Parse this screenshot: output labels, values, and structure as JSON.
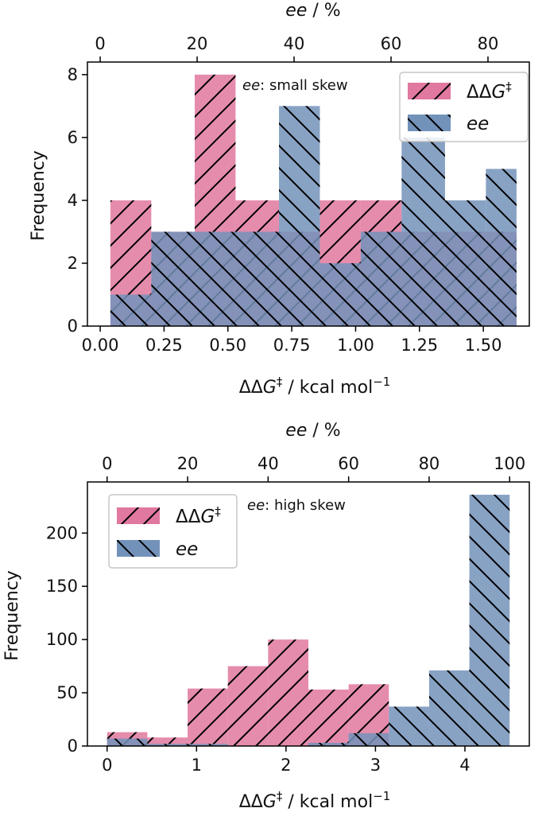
{
  "chart_data": [
    {
      "type": "bar",
      "subtype": "overlaid-histogram",
      "annotation": {
        "italic": "ee",
        "rest": ": small skew"
      },
      "xlabel": {
        "pre": "ΔΔ",
        "italic": "G",
        "sup": "‡",
        "post": " / kcal mol",
        "sup2": "−1"
      },
      "ylabel": "Frequency",
      "top_xlabel": {
        "italic": "ee",
        "post": " / %"
      },
      "xlim": [
        -0.05,
        1.68
      ],
      "ylim": [
        0,
        8.4
      ],
      "xticks": [
        0.0,
        0.25,
        0.5,
        0.75,
        1.0,
        1.25,
        1.5
      ],
      "xtick_labels": [
        "0.00",
        "0.25",
        "0.50",
        "0.75",
        "1.00",
        "1.25",
        "1.50"
      ],
      "yticks": [
        0,
        2,
        4,
        6,
        8
      ],
      "ytick_labels": [
        "0",
        "2",
        "4",
        "6",
        "8"
      ],
      "top_ticks": [
        0,
        20,
        40,
        60,
        80
      ],
      "top_tick_labels": [
        "0",
        "20",
        "40",
        "60",
        "80"
      ],
      "top_xlim": [
        0,
        88
      ],
      "legend": {
        "position": "top-right"
      },
      "series": [
        {
          "legend_label": {
            "pre": "ΔΔ",
            "italic": "G",
            "sup": "‡"
          },
          "color": "#e0789f",
          "hatch": "forward",
          "bin_edges": [
            0.04,
            0.2,
            0.37,
            0.53,
            0.7,
            0.86,
            1.02,
            1.18,
            1.35,
            1.51,
            1.63
          ],
          "values": [
            4,
            3,
            8,
            4,
            3,
            4,
            4,
            3,
            3,
            3
          ]
        },
        {
          "legend_label": {
            "italic": "ee"
          },
          "color": "#7392ba",
          "hatch": "back",
          "bin_edges": [
            0.04,
            0.2,
            0.37,
            0.53,
            0.7,
            0.86,
            1.02,
            1.18,
            1.35,
            1.51,
            1.63
          ],
          "values": [
            1,
            3,
            3,
            3,
            7,
            2,
            3,
            6,
            4,
            5
          ]
        }
      ]
    },
    {
      "type": "bar",
      "subtype": "overlaid-histogram",
      "annotation": {
        "italic": "ee",
        "rest": ": high skew"
      },
      "xlabel": {
        "pre": "ΔΔ",
        "italic": "G",
        "sup": "‡",
        "post": " / kcal mol",
        "sup2": "−1"
      },
      "ylabel": "Frequency",
      "top_xlabel": {
        "italic": "ee",
        "post": " / %"
      },
      "xlim": [
        -0.22,
        4.72
      ],
      "ylim": [
        0,
        248
      ],
      "xticks": [
        0,
        1,
        2,
        3,
        4
      ],
      "xtick_labels": [
        "0",
        "1",
        "2",
        "3",
        "4"
      ],
      "yticks": [
        0,
        50,
        100,
        150,
        200
      ],
      "ytick_labels": [
        "0",
        "50",
        "100",
        "150",
        "200"
      ],
      "top_ticks": [
        0,
        20,
        40,
        60,
        80,
        100
      ],
      "top_tick_labels": [
        "0",
        "20",
        "40",
        "60",
        "80",
        "100"
      ],
      "top_xlim": [
        0,
        100
      ],
      "legend": {
        "position": "top-left"
      },
      "series": [
        {
          "legend_label": {
            "pre": "ΔΔ",
            "italic": "G",
            "sup": "‡"
          },
          "color": "#e0789f",
          "hatch": "forward",
          "bin_edges": [
            0.0,
            0.45,
            0.9,
            1.35,
            1.8,
            2.25,
            2.7,
            3.15,
            3.6,
            4.05,
            4.5
          ],
          "values": [
            13,
            8,
            54,
            75,
            100,
            53,
            58,
            0,
            0,
            0
          ]
        },
        {
          "legend_label": {
            "italic": "ee"
          },
          "color": "#7392ba",
          "hatch": "back",
          "bin_edges": [
            0.0,
            0.45,
            0.9,
            1.35,
            1.8,
            2.25,
            2.7,
            3.15,
            3.6,
            4.05,
            4.5
          ],
          "values": [
            7,
            2,
            2,
            0,
            0,
            3,
            12,
            37,
            71,
            236
          ]
        }
      ]
    }
  ]
}
